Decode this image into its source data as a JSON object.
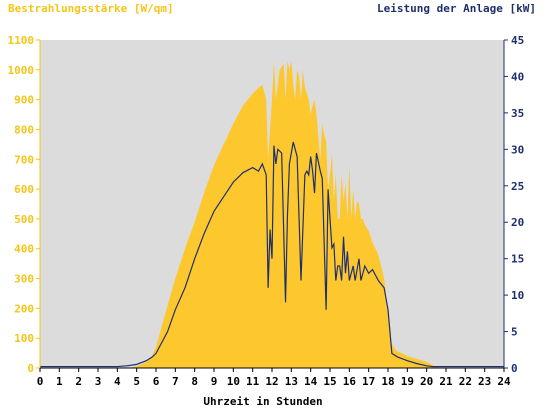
{
  "chart_data": {
    "type": "area",
    "title": "",
    "ylabel_left": "Bestrahlungsstärke [W/qm]",
    "ylabel_right": "Leistung der Anlage [kW]",
    "xlabel": "Uhrzeit in Stunden",
    "xlim": [
      0,
      24
    ],
    "ylim_left": [
      0,
      1100
    ],
    "ylim_right": [
      0,
      45
    ],
    "x_ticks": [
      "0",
      "1",
      "2",
      "3",
      "4",
      "5",
      "6",
      "7",
      "8",
      "9",
      "10",
      "11",
      "12",
      "13",
      "14",
      "15",
      "16",
      "17",
      "18",
      "19",
      "20",
      "21",
      "22",
      "23",
      "24"
    ],
    "y_left_ticks": [
      "0",
      "100",
      "200",
      "300",
      "400",
      "500",
      "600",
      "700",
      "800",
      "900",
      "1000",
      "1100"
    ],
    "y_right_ticks": [
      "0",
      "5",
      "10",
      "15",
      "20",
      "25",
      "30",
      "35",
      "40",
      "45"
    ],
    "grid": false,
    "colors": {
      "plot_background": "#dcdcdc",
      "irradiance_fill": "#fcc82e",
      "power_line": "#1f2f6e",
      "left_axis": "#f5c518",
      "right_axis": "#1f2f6e"
    },
    "series": [
      {
        "axis": "left",
        "style": "filled-area",
        "x": [
          0,
          4.6,
          5,
          5.5,
          5.8,
          6,
          6.3,
          6.6,
          7,
          7.5,
          8,
          8.5,
          9,
          9.5,
          10,
          10.5,
          11,
          11.3,
          11.5,
          11.7,
          11.8,
          11.9,
          12,
          12.1,
          12.2,
          12.4,
          12.6,
          12.7,
          12.8,
          12.9,
          13,
          13.1,
          13.2,
          13.3,
          13.4,
          13.5,
          13.6,
          13.7,
          13.8,
          13.9,
          14,
          14.1,
          14.2,
          14.3,
          14.5,
          14.6,
          14.7,
          14.8,
          14.9,
          15,
          15.1,
          15.2,
          15.3,
          15.4,
          15.5,
          15.6,
          15.7,
          15.8,
          15.9,
          16,
          16.1,
          16.2,
          16.3,
          16.4,
          16.5,
          16.6,
          16.7,
          16.8,
          17,
          17.2,
          17.5,
          17.8,
          18,
          18.2,
          18.4,
          18.5,
          18.7,
          19,
          19.5,
          20,
          20.3,
          20.5,
          21,
          24
        ],
        "values": [
          0,
          0,
          5,
          20,
          40,
          70,
          140,
          210,
          300,
          400,
          490,
          590,
          680,
          750,
          820,
          880,
          920,
          940,
          950,
          900,
          700,
          800,
          900,
          1030,
          900,
          1000,
          1020,
          900,
          1030,
          1000,
          1030,
          950,
          900,
          1000,
          980,
          900,
          1000,
          940,
          920,
          900,
          850,
          880,
          900,
          850,
          700,
          820,
          780,
          760,
          600,
          650,
          720,
          560,
          650,
          500,
          500,
          650,
          560,
          620,
          500,
          680,
          500,
          600,
          500,
          560,
          550,
          500,
          500,
          480,
          460,
          420,
          380,
          300,
          200,
          80,
          60,
          55,
          50,
          40,
          30,
          20,
          10,
          3,
          0,
          0
        ]
      },
      {
        "axis": "right",
        "style": "line",
        "x": [
          0,
          4,
          4.5,
          5,
          5.5,
          5.8,
          6,
          6.3,
          6.6,
          7,
          7.5,
          8,
          8.5,
          9,
          9.5,
          10,
          10.5,
          11,
          11.3,
          11.5,
          11.7,
          11.8,
          11.9,
          12,
          12.1,
          12.2,
          12.3,
          12.5,
          12.7,
          12.8,
          12.9,
          13,
          13.1,
          13.3,
          13.5,
          13.7,
          13.8,
          13.9,
          14,
          14.1,
          14.2,
          14.3,
          14.5,
          14.6,
          14.8,
          14.9,
          15,
          15.1,
          15.2,
          15.3,
          15.4,
          15.5,
          15.6,
          15.7,
          15.8,
          15.9,
          16,
          16.2,
          16.3,
          16.5,
          16.6,
          16.8,
          17,
          17.2,
          17.5,
          17.8,
          18,
          18.2,
          18.5,
          19,
          19.5,
          20,
          20.3,
          20.5,
          21,
          24
        ],
        "values": [
          0.2,
          0.2,
          0.3,
          0.5,
          1,
          1.5,
          2,
          3.5,
          5,
          8,
          11,
          15,
          18.5,
          21.5,
          23.5,
          25.5,
          26.8,
          27.5,
          27,
          28,
          26.5,
          11,
          19,
          15,
          30.5,
          28,
          30,
          29.5,
          9,
          21,
          28,
          29.5,
          31,
          29,
          12,
          26.5,
          27,
          26.5,
          29,
          27,
          24,
          29.5,
          27,
          26,
          8,
          24.5,
          20.5,
          16.5,
          17,
          12,
          14,
          14,
          12,
          18,
          13,
          16,
          12,
          14,
          12,
          15,
          12,
          14,
          13,
          13.5,
          12,
          11,
          8,
          2,
          1.5,
          1,
          0.6,
          0.3,
          0.2,
          0.2,
          0.2,
          0.2
        ]
      }
    ]
  }
}
